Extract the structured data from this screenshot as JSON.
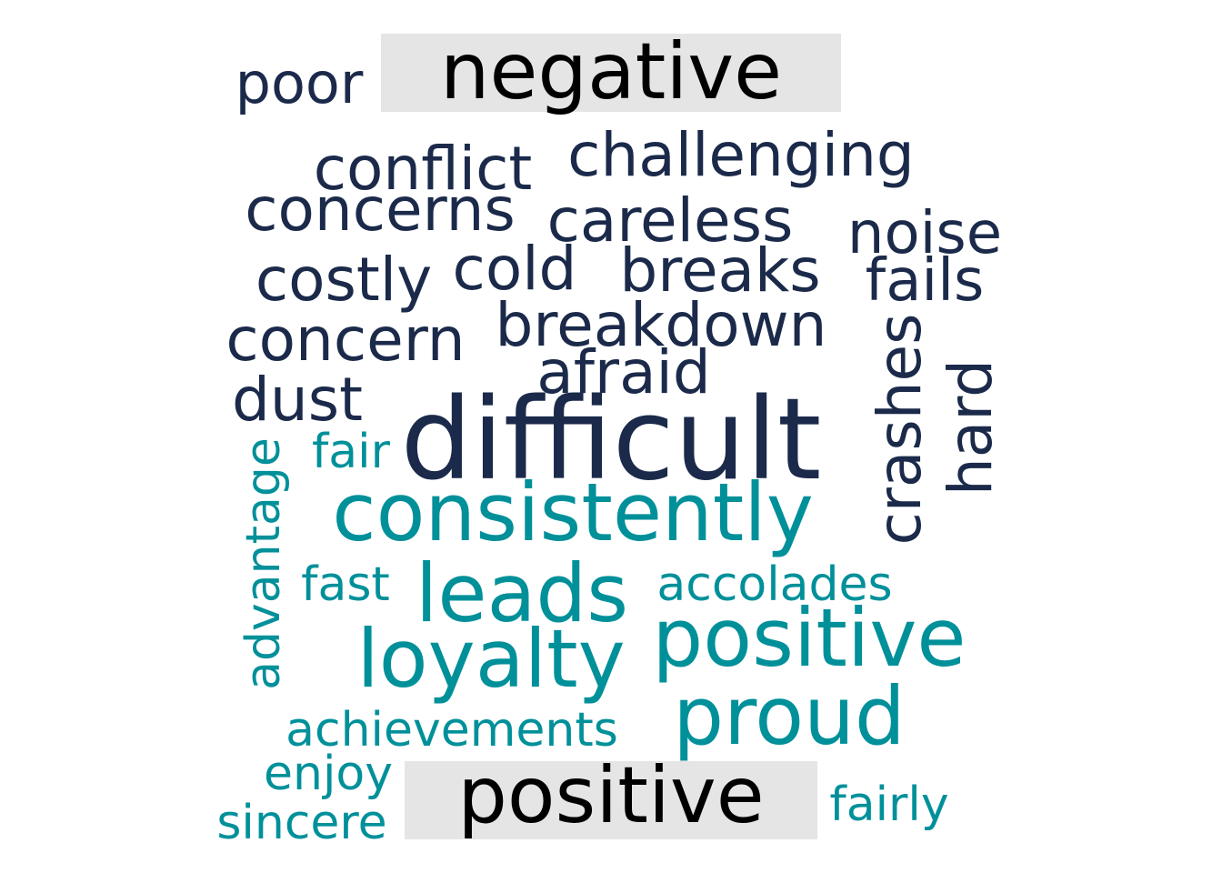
{
  "chart_data": {
    "type": "wordcloud",
    "colors": {
      "negative": "#1b2a4a",
      "positive": "#00909a",
      "label_bg": "#e5e5e5",
      "label_text": "#000000"
    },
    "groups": [
      {
        "label": "negative"
      },
      {
        "label": "positive"
      }
    ],
    "words": [
      {
        "text": "poor",
        "group": "negative"
      },
      {
        "text": "conflict",
        "group": "negative"
      },
      {
        "text": "challenging",
        "group": "negative"
      },
      {
        "text": "concerns",
        "group": "negative"
      },
      {
        "text": "careless",
        "group": "negative"
      },
      {
        "text": "noise",
        "group": "negative"
      },
      {
        "text": "costly",
        "group": "negative"
      },
      {
        "text": "cold",
        "group": "negative"
      },
      {
        "text": "breaks",
        "group": "negative"
      },
      {
        "text": "fails",
        "group": "negative"
      },
      {
        "text": "concern",
        "group": "negative"
      },
      {
        "text": "breakdown",
        "group": "negative"
      },
      {
        "text": "afraid",
        "group": "negative"
      },
      {
        "text": "dust",
        "group": "negative"
      },
      {
        "text": "difficult",
        "group": "negative"
      },
      {
        "text": "crashes",
        "group": "negative"
      },
      {
        "text": "hard",
        "group": "negative"
      },
      {
        "text": "fair",
        "group": "positive"
      },
      {
        "text": "advantage",
        "group": "positive"
      },
      {
        "text": "consistently",
        "group": "positive"
      },
      {
        "text": "fast",
        "group": "positive"
      },
      {
        "text": "leads",
        "group": "positive"
      },
      {
        "text": "accolades",
        "group": "positive"
      },
      {
        "text": "loyalty",
        "group": "positive"
      },
      {
        "text": "positive",
        "group": "positive"
      },
      {
        "text": "proud",
        "group": "positive"
      },
      {
        "text": "achievements",
        "group": "positive"
      },
      {
        "text": "enjoy",
        "group": "positive"
      },
      {
        "text": "sincere",
        "group": "positive"
      },
      {
        "text": "fairly",
        "group": "positive"
      }
    ]
  }
}
